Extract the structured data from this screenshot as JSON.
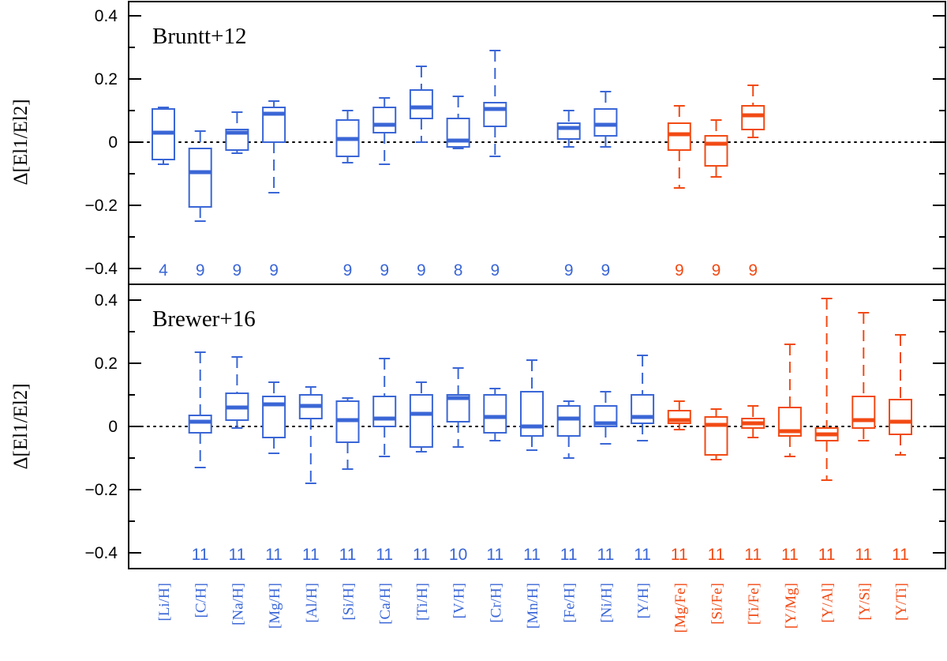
{
  "chart_data": {
    "type": "boxplot",
    "categories": [
      "[Li/H]",
      "[C/H]",
      "[Na/H]",
      "[Mg/H]",
      "[Al/H]",
      "[Si/H]",
      "[Ca/H]",
      "[Ti/H]",
      "[V/H]",
      "[Cr/H]",
      "[Mn/H]",
      "[Fe/H]",
      "[Ni/H]",
      "[Y/H]",
      "[Mg/Fe]",
      "[Si/Fe]",
      "[Ti/Fe]",
      "[Y/Mg]",
      "[Y/Al]",
      "[Y/Si]",
      "[Y/Ti]"
    ],
    "category_colors": [
      "#3a66d6",
      "#3a66d6",
      "#3a66d6",
      "#3a66d6",
      "#3a66d6",
      "#3a66d6",
      "#3a66d6",
      "#3a66d6",
      "#3a66d6",
      "#3a66d6",
      "#3a66d6",
      "#3a66d6",
      "#3a66d6",
      "#3a66d6",
      "#f24a14",
      "#f24a14",
      "#f24a14",
      "#f24a14",
      "#f24a14",
      "#f24a14",
      "#f24a14"
    ],
    "colors": {
      "abundance": "#3a66d6",
      "ratio": "#f24a14"
    },
    "ylabel": "Δ[El1/El2]",
    "ylim": [
      -0.45,
      0.45
    ],
    "yticks": [
      -0.4,
      -0.2,
      0,
      0.2,
      0.4
    ],
    "ytick_labels": [
      "−0.4",
      "−0.2",
      "0",
      "0.2",
      "0.4"
    ],
    "zero_line": "dotted",
    "panels": [
      {
        "title": "Bruntt+12",
        "boxes": [
          {
            "category": "[Li/H]",
            "min": -0.07,
            "q1": -0.055,
            "median": 0.03,
            "q3": 0.105,
            "max": 0.11,
            "n": "4"
          },
          {
            "category": "[C/H]",
            "min": -0.25,
            "q1": -0.205,
            "median": -0.095,
            "q3": -0.02,
            "max": 0.035,
            "n": "9"
          },
          {
            "category": "[Na/H]",
            "min": -0.035,
            "q1": -0.025,
            "median": 0.03,
            "q3": 0.04,
            "max": 0.095,
            "n": "9"
          },
          {
            "category": "[Mg/H]",
            "min": -0.16,
            "q1": 0.0,
            "median": 0.09,
            "q3": 0.11,
            "max": 0.13,
            "n": "9"
          },
          {
            "category": "[Si/H]",
            "min": -0.065,
            "q1": -0.045,
            "median": 0.01,
            "q3": 0.07,
            "max": 0.1,
            "n": "9"
          },
          {
            "category": "[Ca/H]",
            "min": -0.07,
            "q1": 0.03,
            "median": 0.055,
            "q3": 0.11,
            "max": 0.14,
            "n": "9"
          },
          {
            "category": "[Ti/H]",
            "min": 0.0,
            "q1": 0.075,
            "median": 0.11,
            "q3": 0.165,
            "max": 0.24,
            "n": "9"
          },
          {
            "category": "[V/H]",
            "min": -0.02,
            "q1": -0.015,
            "median": 0.005,
            "q3": 0.075,
            "max": 0.145,
            "n": "8"
          },
          {
            "category": "[Cr/H]",
            "min": -0.045,
            "q1": 0.05,
            "median": 0.105,
            "q3": 0.125,
            "max": 0.29,
            "n": "9"
          },
          {
            "category": "[Fe/H]",
            "min": -0.015,
            "q1": 0.01,
            "median": 0.045,
            "q3": 0.06,
            "max": 0.1,
            "n": "9"
          },
          {
            "category": "[Ni/H]",
            "min": -0.015,
            "q1": 0.02,
            "median": 0.055,
            "q3": 0.105,
            "max": 0.16,
            "n": "9"
          },
          {
            "category": "[Mg/Fe]",
            "min": -0.145,
            "q1": -0.025,
            "median": 0.025,
            "q3": 0.06,
            "max": 0.115,
            "n": "9"
          },
          {
            "category": "[Si/Fe]",
            "min": -0.11,
            "q1": -0.075,
            "median": -0.005,
            "q3": 0.02,
            "max": 0.07,
            "n": "9"
          },
          {
            "category": "[Ti/Fe]",
            "min": 0.015,
            "q1": 0.04,
            "median": 0.085,
            "q3": 0.115,
            "max": 0.18,
            "n": "9"
          }
        ]
      },
      {
        "title": "Brewer+16",
        "boxes": [
          {
            "category": "[C/H]",
            "min": -0.13,
            "q1": -0.02,
            "median": 0.015,
            "q3": 0.035,
            "max": 0.235,
            "n": "11"
          },
          {
            "category": "[Na/H]",
            "min": -0.005,
            "q1": 0.02,
            "median": 0.06,
            "q3": 0.105,
            "max": 0.22,
            "n": "11"
          },
          {
            "category": "[Mg/H]",
            "min": -0.085,
            "q1": -0.035,
            "median": 0.07,
            "q3": 0.095,
            "max": 0.14,
            "n": "11"
          },
          {
            "category": "[Al/H]",
            "min": -0.18,
            "q1": 0.025,
            "median": 0.065,
            "q3": 0.1,
            "max": 0.125,
            "n": "11"
          },
          {
            "category": "[Si/H]",
            "min": -0.135,
            "q1": -0.05,
            "median": 0.02,
            "q3": 0.08,
            "max": 0.09,
            "n": "11"
          },
          {
            "category": "[Ca/H]",
            "min": -0.095,
            "q1": 0.0,
            "median": 0.025,
            "q3": 0.095,
            "max": 0.215,
            "n": "11"
          },
          {
            "category": "[Ti/H]",
            "min": -0.08,
            "q1": -0.065,
            "median": 0.04,
            "q3": 0.1,
            "max": 0.14,
            "n": "11"
          },
          {
            "category": "[V/H]",
            "min": -0.065,
            "q1": 0.015,
            "median": 0.09,
            "q3": 0.1,
            "max": 0.185,
            "n": "10"
          },
          {
            "category": "[Cr/H]",
            "min": -0.045,
            "q1": -0.02,
            "median": 0.03,
            "q3": 0.1,
            "max": 0.12,
            "n": "11"
          },
          {
            "category": "[Mn/H]",
            "min": -0.075,
            "q1": -0.03,
            "median": 0.0,
            "q3": 0.11,
            "max": 0.21,
            "n": "11"
          },
          {
            "category": "[Fe/H]",
            "min": -0.1,
            "q1": -0.03,
            "median": 0.025,
            "q3": 0.065,
            "max": 0.08,
            "n": "11"
          },
          {
            "category": "[Ni/H]",
            "min": -0.055,
            "q1": 0.0,
            "median": 0.01,
            "q3": 0.065,
            "max": 0.11,
            "n": "11"
          },
          {
            "category": "[Y/H]",
            "min": -0.045,
            "q1": 0.01,
            "median": 0.03,
            "q3": 0.1,
            "max": 0.225,
            "n": "11"
          },
          {
            "category": "[Mg/Fe]",
            "min": -0.01,
            "q1": 0.01,
            "median": 0.02,
            "q3": 0.05,
            "max": 0.08,
            "n": "11"
          },
          {
            "category": "[Si/Fe]",
            "min": -0.105,
            "q1": -0.09,
            "median": 0.005,
            "q3": 0.03,
            "max": 0.055,
            "n": "11"
          },
          {
            "category": "[Ti/Fe]",
            "min": -0.035,
            "q1": -0.005,
            "median": 0.01,
            "q3": 0.025,
            "max": 0.065,
            "n": "11"
          },
          {
            "category": "[Y/Mg]",
            "min": -0.095,
            "q1": -0.03,
            "median": -0.015,
            "q3": 0.06,
            "max": 0.26,
            "n": "11"
          },
          {
            "category": "[Y/Al]",
            "min": -0.17,
            "q1": -0.045,
            "median": -0.025,
            "q3": -0.005,
            "max": 0.405,
            "n": "11"
          },
          {
            "category": "[Y/Si]",
            "min": -0.045,
            "q1": -0.005,
            "median": 0.02,
            "q3": 0.095,
            "max": 0.36,
            "n": "11"
          },
          {
            "category": "[Y/Ti]",
            "min": -0.09,
            "q1": -0.025,
            "median": 0.015,
            "q3": 0.085,
            "max": 0.29,
            "n": "11"
          }
        ]
      }
    ]
  }
}
